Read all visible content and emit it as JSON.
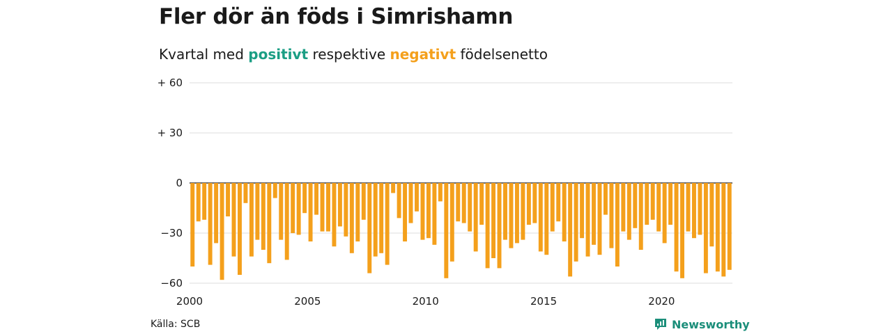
{
  "title": "Fler dör än föds i Simrishamn",
  "subtitle": {
    "prefix": "Kvartal med",
    "positive_word": "positivt",
    "middle": "respektive",
    "negative_word": "negativt",
    "suffix": "födelsenetto"
  },
  "source": "Källa: SCB",
  "brand": "Newsworthy",
  "colors": {
    "negative": "#f4a01c",
    "positive": "#1b9e84",
    "brand": "#1b8e7a"
  },
  "chart_data": {
    "type": "bar",
    "title": "",
    "xlabel": "",
    "ylabel": "",
    "ylim": [
      -60,
      60
    ],
    "yticks": [
      60,
      30,
      0,
      -30,
      -60
    ],
    "ytick_labels": [
      "+ 60",
      "+ 30",
      "0",
      "−30",
      "−60"
    ],
    "xlim": [
      2000,
      2023
    ],
    "xticks": [
      2000,
      2005,
      2010,
      2015,
      2020
    ],
    "xtick_labels": [
      "2000",
      "2005",
      "2010",
      "2015",
      "2020"
    ],
    "grid": true,
    "x_start": "2000 Q1",
    "values": [
      -50,
      -23,
      -22,
      -49,
      -36,
      -58,
      -20,
      -44,
      -55,
      -12,
      -44,
      -34,
      -40,
      -48,
      -9,
      -34,
      -46,
      -30,
      -31,
      -18,
      -35,
      -19,
      -29,
      -29,
      -38,
      -26,
      -32,
      -42,
      -35,
      -22,
      -54,
      -44,
      -42,
      -49,
      -6,
      -21,
      -35,
      -24,
      -17,
      -34,
      -33,
      -37,
      -11,
      -57,
      -47,
      -23,
      -24,
      -29,
      -41,
      -25,
      -51,
      -45,
      -51,
      -34,
      -39,
      -36,
      -34,
      -25,
      -24,
      -41,
      -43,
      -29,
      -23,
      -35,
      -56,
      -47,
      -33,
      -44,
      -37,
      -43,
      -19,
      -39,
      -50,
      -29,
      -34,
      -27,
      -40,
      -25,
      -22,
      -29,
      -36,
      -25,
      -53,
      -57,
      -29,
      -33,
      -31,
      -54,
      -38,
      -53,
      -56,
      -52
    ]
  }
}
